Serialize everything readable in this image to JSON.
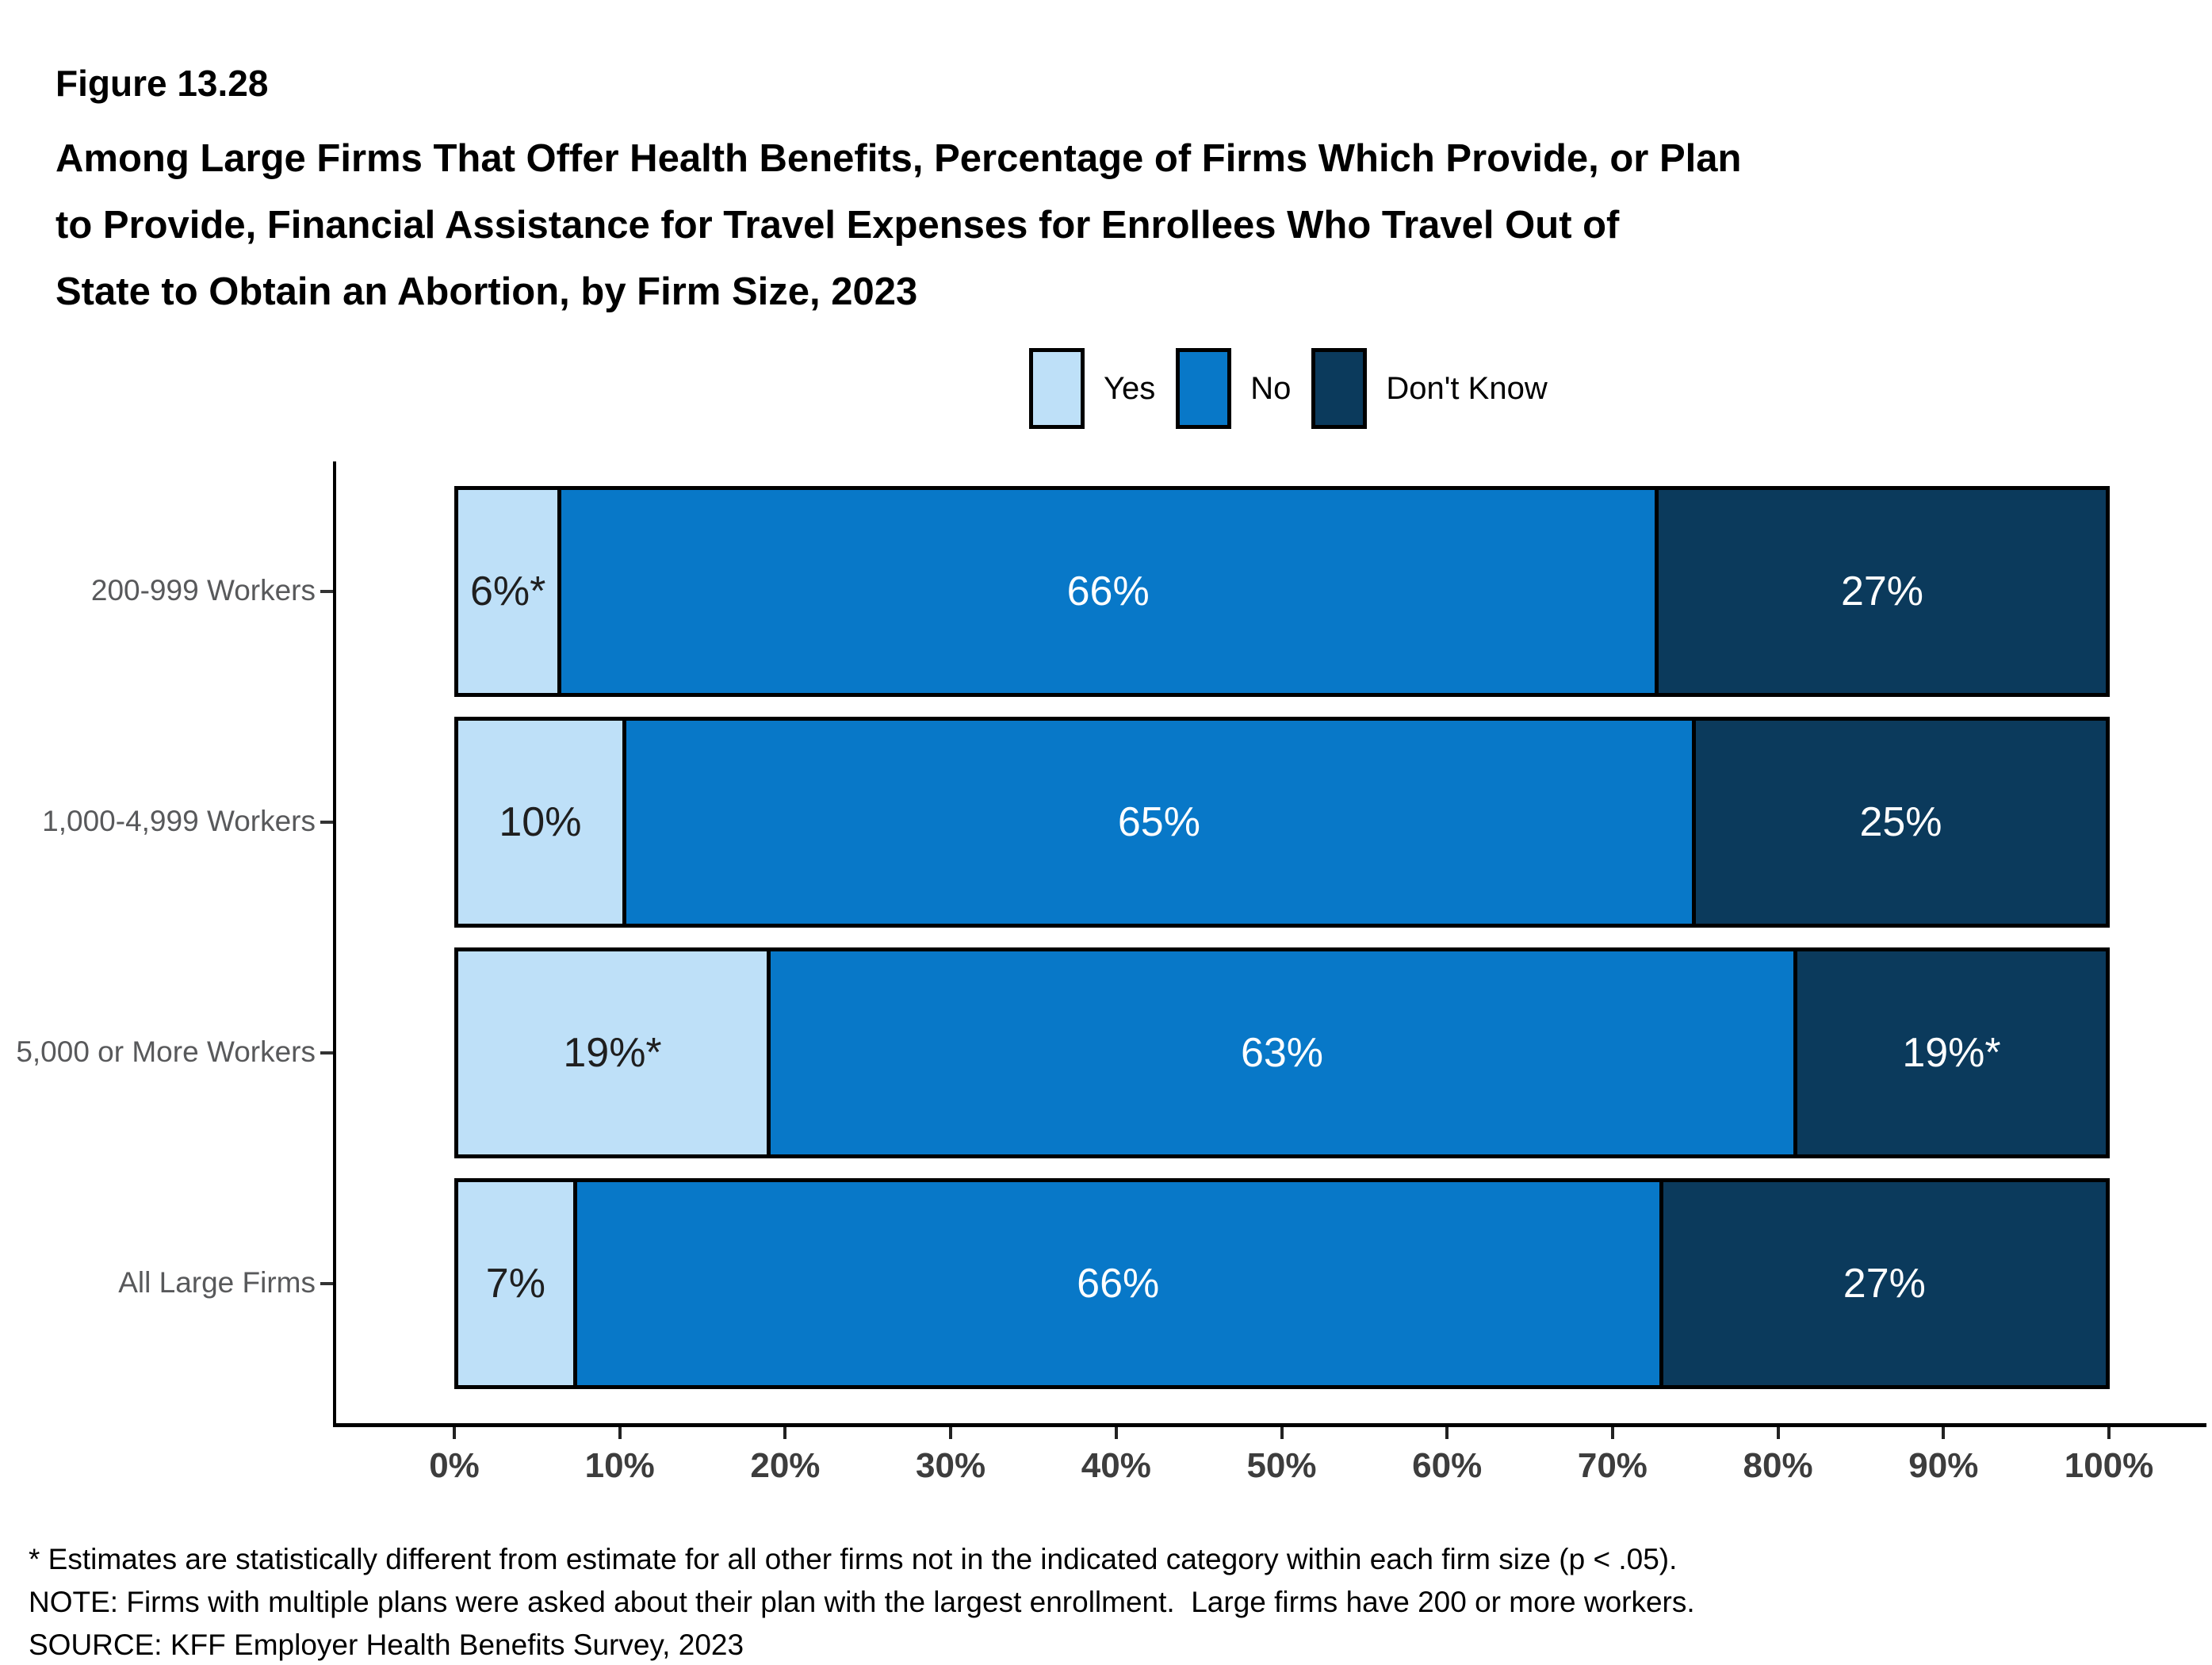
{
  "figure_label": "Figure 13.28",
  "title": {
    "line1": "Among Large Firms That Offer Health Benefits, Percentage of Firms Which Provide, or Plan",
    "line2": "to Provide, Financial Assistance for Travel Expenses for Enrollees Who Travel Out of",
    "line3": "State to Obtain an Abortion, by Firm Size, 2023"
  },
  "legend": {
    "items": [
      {
        "key": "yes",
        "label": "Yes"
      },
      {
        "key": "no",
        "label": "No"
      },
      {
        "key": "dont_know",
        "label": "Don't Know"
      }
    ]
  },
  "chart_data": {
    "type": "bar",
    "orientation": "horizontal-stacked",
    "title": "Among Large Firms That Offer Health Benefits, Percentage of Firms Which Provide, or Plan to Provide, Financial Assistance for Travel Expenses for Enrollees Who Travel Out of State to Obtain an Abortion, by Firm Size, 2023",
    "xlabel": "",
    "ylabel": "",
    "xlim": [
      0,
      100
    ],
    "grid": false,
    "legend_position": "top",
    "x_ticks": [
      "0%",
      "10%",
      "20%",
      "30%",
      "40%",
      "50%",
      "60%",
      "70%",
      "80%",
      "90%",
      "100%"
    ],
    "categories": [
      "200-999 Workers",
      "1,000-4,999 Workers",
      "5,000 or More Workers",
      "All Large Firms"
    ],
    "series": [
      {
        "name": "Yes",
        "values": [
          6,
          10,
          19,
          7
        ]
      },
      {
        "name": "No",
        "values": [
          66,
          65,
          63,
          66
        ]
      },
      {
        "name": "Don't Know",
        "values": [
          27,
          25,
          19,
          27
        ]
      }
    ],
    "colors": {
      "yes": "#BEE0F8",
      "no": "#0878C8",
      "dont_know": "#0B3A5C"
    },
    "label_colors": {
      "yes": "#1F1F1F",
      "no": "#FFFFFF",
      "dont_know": "#FFFFFF"
    },
    "rows": [
      {
        "category": "200-999 Workers",
        "segments": [
          {
            "key": "yes",
            "value": 6,
            "label": "6%*"
          },
          {
            "key": "no",
            "value": 66,
            "label": "66%"
          },
          {
            "key": "dont_know",
            "value": 27,
            "label": "27%"
          }
        ]
      },
      {
        "category": "1,000-4,999 Workers",
        "segments": [
          {
            "key": "yes",
            "value": 10,
            "label": "10%"
          },
          {
            "key": "no",
            "value": 65,
            "label": "65%"
          },
          {
            "key": "dont_know",
            "value": 25,
            "label": "25%"
          }
        ]
      },
      {
        "category": "5,000 or More Workers",
        "segments": [
          {
            "key": "yes",
            "value": 19,
            "label": "19%*"
          },
          {
            "key": "no",
            "value": 63,
            "label": "63%"
          },
          {
            "key": "dont_know",
            "value": 19,
            "label": "19%*"
          }
        ]
      },
      {
        "category": "All Large Firms",
        "segments": [
          {
            "key": "yes",
            "value": 7,
            "label": "7%"
          },
          {
            "key": "no",
            "value": 66,
            "label": "66%"
          },
          {
            "key": "dont_know",
            "value": 27,
            "label": "27%"
          }
        ]
      }
    ]
  },
  "footnotes": {
    "line1": "* Estimates are statistically different from estimate for all other firms not in the indicated category within each firm size (p < .05).",
    "line2": "NOTE: Firms with multiple plans were asked about their plan with the largest enrollment.  Large firms have 200 or more workers.",
    "line3": "SOURCE: KFF Employer Health Benefits Survey, 2023"
  }
}
